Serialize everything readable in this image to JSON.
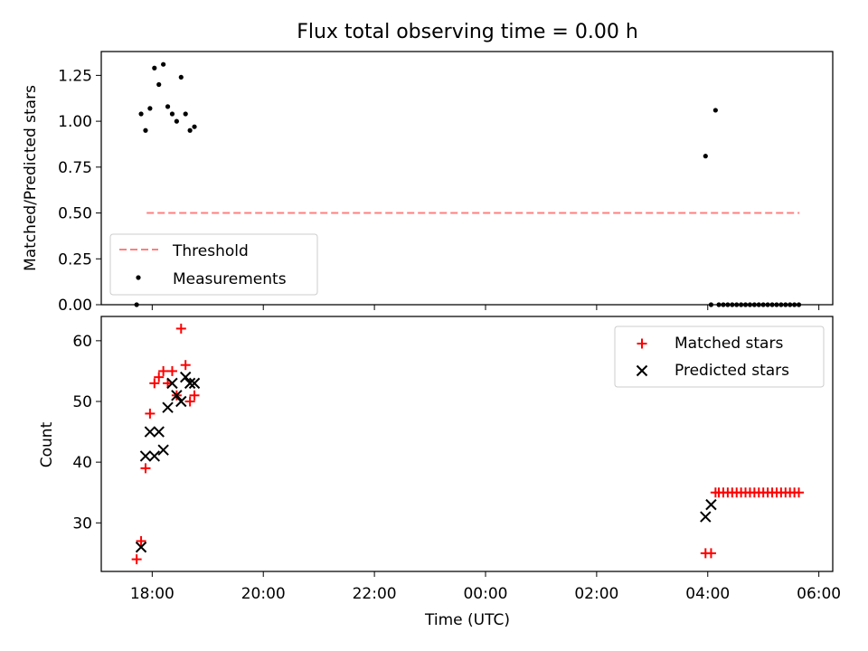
{
  "figure_title": "Flux total observing time = 0.00 h",
  "x_axis": {
    "label": "Time (UTC)",
    "ticks": [
      {
        "label": "18:00",
        "t": 18.0
      },
      {
        "label": "20:00",
        "t": 20.0
      },
      {
        "label": "22:00",
        "t": 22.0
      },
      {
        "label": "00:00",
        "t": 24.0
      },
      {
        "label": "02:00",
        "t": 26.0
      },
      {
        "label": "04:00",
        "t": 28.0
      },
      {
        "label": "06:00",
        "t": 30.0
      }
    ]
  },
  "chart_data": [
    {
      "type": "scatter",
      "ylabel": "Matched/Predicted stars",
      "ylim": [
        0,
        1.38
      ],
      "yticks": [
        "0.00",
        "0.25",
        "0.50",
        "0.75",
        "1.00",
        "1.25"
      ],
      "legend": {
        "position": "lower-left",
        "entries": [
          "Threshold",
          "Measurements"
        ]
      },
      "threshold": {
        "name": "Threshold",
        "y": 0.5,
        "x_start": 17.9,
        "x_end": 29.65,
        "color": "#ff7f7f"
      },
      "series": [
        {
          "name": "Measurements",
          "color": "#000000",
          "points": [
            [
              17.72,
              0.0
            ],
            [
              17.8,
              1.04
            ],
            [
              17.88,
              0.95
            ],
            [
              17.96,
              1.07
            ],
            [
              18.04,
              1.29
            ],
            [
              18.12,
              1.2
            ],
            [
              18.2,
              1.31
            ],
            [
              18.28,
              1.08
            ],
            [
              18.36,
              1.04
            ],
            [
              18.44,
              1.0
            ],
            [
              18.52,
              1.24
            ],
            [
              18.6,
              1.04
            ],
            [
              18.68,
              0.95
            ],
            [
              18.76,
              0.97
            ],
            [
              27.96,
              0.81
            ],
            [
              28.06,
              0.0
            ],
            [
              28.14,
              1.06
            ],
            [
              28.2,
              0.0
            ],
            [
              28.28,
              0.0
            ],
            [
              28.36,
              0.0
            ],
            [
              28.44,
              0.0
            ],
            [
              28.52,
              0.0
            ],
            [
              28.6,
              0.0
            ],
            [
              28.68,
              0.0
            ],
            [
              28.76,
              0.0
            ],
            [
              28.84,
              0.0
            ],
            [
              28.92,
              0.0
            ],
            [
              29.0,
              0.0
            ],
            [
              29.08,
              0.0
            ],
            [
              29.16,
              0.0
            ],
            [
              29.24,
              0.0
            ],
            [
              29.32,
              0.0
            ],
            [
              29.4,
              0.0
            ],
            [
              29.48,
              0.0
            ],
            [
              29.56,
              0.0
            ],
            [
              29.64,
              0.0
            ]
          ]
        }
      ]
    },
    {
      "type": "scatter",
      "ylabel": "Count",
      "ylim": [
        22,
        64
      ],
      "yticks": [
        "30",
        "40",
        "50",
        "60"
      ],
      "legend": {
        "position": "upper-right",
        "entries": [
          "Matched stars",
          "Predicted stars"
        ]
      },
      "series": [
        {
          "name": "Matched stars",
          "marker": "plus",
          "color": "#ff0000",
          "points": [
            [
              17.72,
              24
            ],
            [
              17.8,
              27
            ],
            [
              17.88,
              39
            ],
            [
              17.96,
              48
            ],
            [
              18.04,
              53
            ],
            [
              18.12,
              54
            ],
            [
              18.2,
              55
            ],
            [
              18.28,
              53
            ],
            [
              18.36,
              55
            ],
            [
              18.44,
              51
            ],
            [
              18.52,
              62
            ],
            [
              18.6,
              56
            ],
            [
              18.68,
              50
            ],
            [
              18.76,
              51
            ],
            [
              27.96,
              25
            ],
            [
              28.06,
              25
            ],
            [
              28.14,
              35
            ],
            [
              28.2,
              35
            ],
            [
              28.28,
              35
            ],
            [
              28.36,
              35
            ],
            [
              28.44,
              35
            ],
            [
              28.52,
              35
            ],
            [
              28.6,
              35
            ],
            [
              28.68,
              35
            ],
            [
              28.76,
              35
            ],
            [
              28.84,
              35
            ],
            [
              28.92,
              35
            ],
            [
              29.0,
              35
            ],
            [
              29.08,
              35
            ],
            [
              29.16,
              35
            ],
            [
              29.24,
              35
            ],
            [
              29.32,
              35
            ],
            [
              29.4,
              35
            ],
            [
              29.48,
              35
            ],
            [
              29.56,
              35
            ],
            [
              29.64,
              35
            ]
          ]
        },
        {
          "name": "Predicted stars",
          "marker": "x",
          "color": "#000000",
          "points": [
            [
              17.8,
              26
            ],
            [
              17.88,
              41
            ],
            [
              17.96,
              45
            ],
            [
              18.04,
              41
            ],
            [
              18.12,
              45
            ],
            [
              18.2,
              42
            ],
            [
              18.28,
              49
            ],
            [
              18.36,
              53
            ],
            [
              18.44,
              51
            ],
            [
              18.52,
              50
            ],
            [
              18.6,
              54
            ],
            [
              18.68,
              53
            ],
            [
              18.76,
              53
            ],
            [
              27.96,
              31
            ],
            [
              28.06,
              33
            ]
          ]
        }
      ]
    }
  ]
}
